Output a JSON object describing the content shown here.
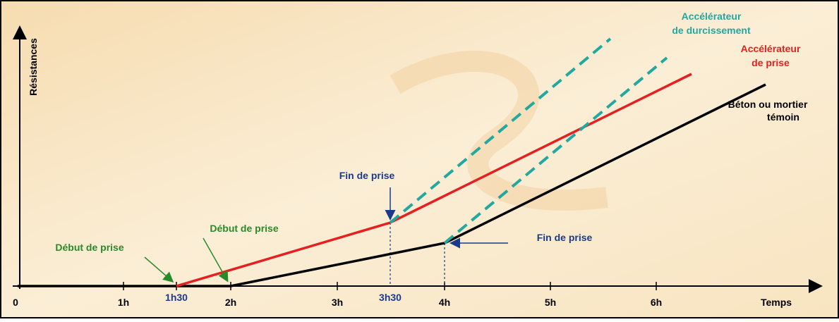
{
  "axes": {
    "y_label": "Résistances",
    "x_label": "Temps",
    "x_ticks": [
      "0",
      "1h",
      "1h30",
      "2h",
      "3h",
      "3h30",
      "4h",
      "5h",
      "6h"
    ]
  },
  "curves": {
    "hardening": [
      "Accélérateur",
      "de durcissement"
    ],
    "setting": [
      "Accélérateur",
      "de prise"
    ],
    "reference": [
      "Béton ou mortier",
      "témoin"
    ]
  },
  "annotations": {
    "start_accel": "Début de prise",
    "start_ref": "Début de prise",
    "end_accel": "Fin de prise",
    "end_ref": "Fin de prise"
  }
}
